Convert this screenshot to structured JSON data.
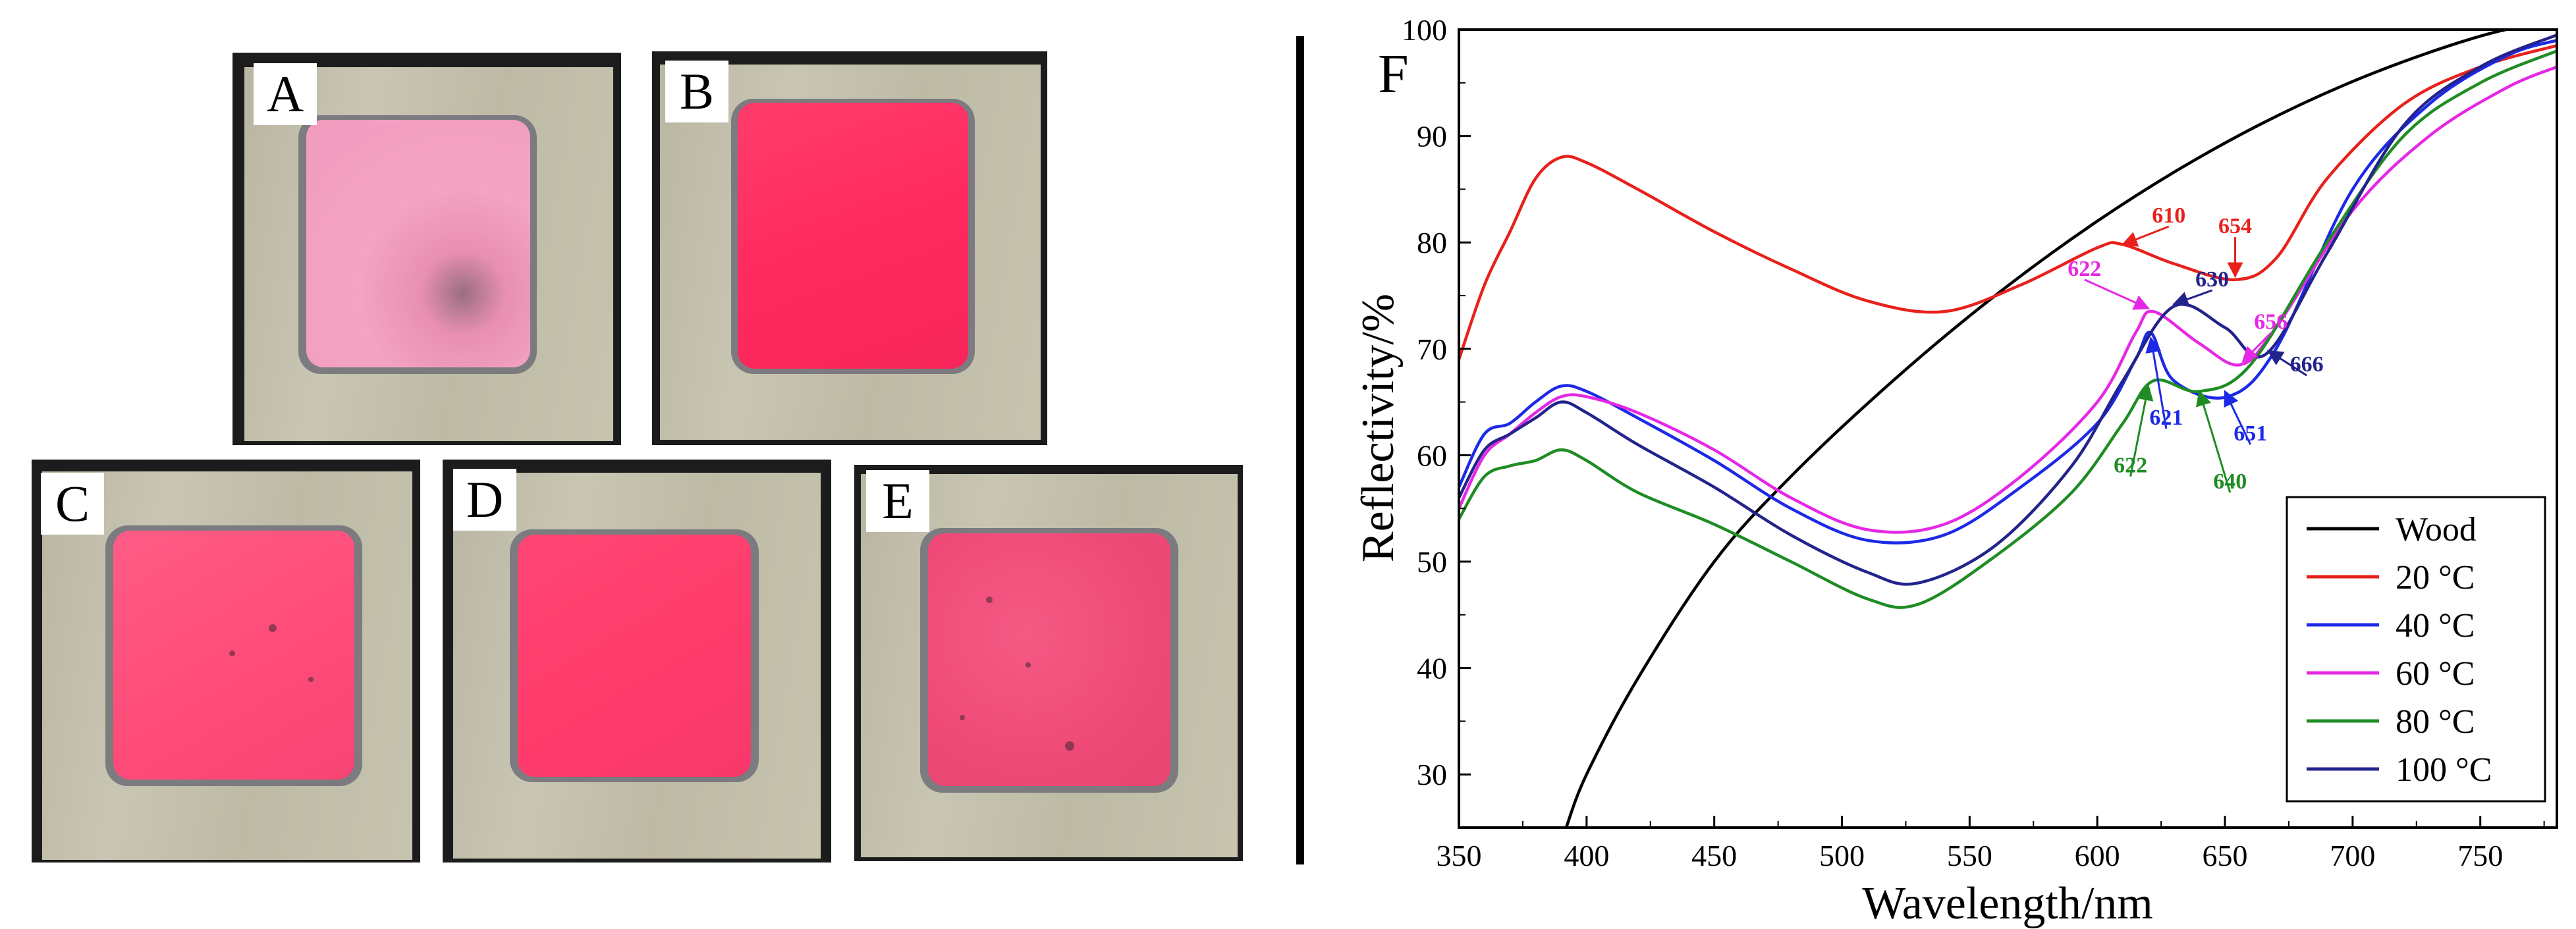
{
  "panels": {
    "A": {
      "label": "A",
      "color": "#f08fb4"
    },
    "B": {
      "label": "B",
      "color": "#ff2d62"
    },
    "C": {
      "label": "C",
      "color": "#ff4f7c"
    },
    "D": {
      "label": "D",
      "color": "#ff3e6e"
    },
    "E": {
      "label": "E",
      "color": "#f24b78"
    }
  },
  "chart_data": {
    "type": "line",
    "panel_label": "F",
    "title": "",
    "xlabel": "Wavelength/nm",
    "ylabel": "Reflectivity/%",
    "xlim": [
      350,
      780
    ],
    "ylim": [
      25,
      100
    ],
    "xticks": [
      350,
      400,
      450,
      500,
      550,
      600,
      650,
      700,
      750
    ],
    "yticks": [
      30,
      40,
      50,
      60,
      70,
      80,
      90,
      100
    ],
    "legend_position": "bottom-right",
    "series": [
      {
        "name": "Wood",
        "color": "#000000",
        "x": [
          392,
          400,
          420,
          450,
          480,
          520,
          560,
          600,
          640,
          680,
          720,
          760,
          780
        ],
        "y": [
          25,
          30,
          39,
          50,
          58,
          67,
          75,
          82,
          88,
          93,
          97,
          100,
          100
        ]
      },
      {
        "name": "20 °C",
        "color": "#e8211c",
        "x": [
          350,
          360,
          370,
          380,
          390,
          400,
          420,
          450,
          480,
          510,
          540,
          570,
          600,
          610,
          630,
          654,
          670,
          690,
          720,
          750,
          780
        ],
        "y": [
          69,
          76,
          81,
          86,
          88,
          87.5,
          85,
          81,
          77.5,
          74.5,
          73.5,
          76,
          79.5,
          79.8,
          78,
          76.5,
          78.5,
          86,
          93,
          96.5,
          98.5
        ]
      },
      {
        "name": "40 °C",
        "color": "#1c29e6",
        "x": [
          350,
          360,
          370,
          380,
          390,
          400,
          420,
          450,
          480,
          510,
          540,
          570,
          600,
          615,
          621,
          630,
          651,
          670,
          700,
          730,
          760,
          780
        ],
        "y": [
          57,
          62,
          63,
          65,
          66.5,
          66,
          63.5,
          59.5,
          55,
          52,
          52.5,
          57,
          63,
          69,
          71.5,
          67,
          65.5,
          70,
          85,
          93,
          97.5,
          99
        ]
      },
      {
        "name": "60 °C",
        "color": "#e528e5",
        "x": [
          350,
          360,
          370,
          380,
          390,
          400,
          420,
          450,
          480,
          510,
          540,
          570,
          600,
          615,
          622,
          640,
          656,
          670,
          700,
          730,
          760,
          780
        ],
        "y": [
          55,
          60,
          62,
          64,
          65.5,
          65.5,
          64,
          60.5,
          56,
          53,
          53.5,
          58,
          65,
          71.5,
          73.5,
          70.5,
          68.5,
          72,
          83,
          90,
          94.5,
          96.5
        ]
      },
      {
        "name": "80 °C",
        "color": "#1f8c24",
        "x": [
          350,
          360,
          370,
          380,
          390,
          400,
          420,
          450,
          480,
          510,
          530,
          560,
          590,
          610,
          622,
          640,
          660,
          690,
          720,
          750,
          780
        ],
        "y": [
          54,
          58,
          59,
          59.5,
          60.5,
          59.5,
          56.5,
          53.5,
          50,
          46.5,
          46,
          50.5,
          56.5,
          63,
          67,
          66,
          68.5,
          80,
          90,
          95,
          98
        ]
      },
      {
        "name": "100 °C",
        "color": "#23238c",
        "x": [
          350,
          360,
          370,
          380,
          390,
          400,
          420,
          450,
          480,
          510,
          530,
          560,
          590,
          610,
          630,
          650,
          666,
          690,
          720,
          750,
          780
        ],
        "y": [
          56,
          60.5,
          62,
          63.5,
          65,
          64,
          61,
          57,
          52.5,
          49,
          48,
          51.5,
          59,
          67,
          74,
          72,
          69.5,
          79,
          91,
          96.5,
          99.5
        ]
      }
    ],
    "annotations": [
      {
        "text": "610",
        "color": "#e8211c",
        "x": 610,
        "y": 79.8,
        "tx": 628,
        "ty": 81.5
      },
      {
        "text": "654",
        "color": "#e8211c",
        "x": 654,
        "y": 76.8,
        "tx": 654,
        "ty": 80.5
      },
      {
        "text": "622",
        "color": "#e528e5",
        "x": 620,
        "y": 73.8,
        "tx": 595,
        "ty": 76.5
      },
      {
        "text": "630",
        "color": "#23238c",
        "x": 630,
        "y": 74.2,
        "tx": 645,
        "ty": 75.5
      },
      {
        "text": "656",
        "color": "#e528e5",
        "x": 657,
        "y": 68.8,
        "tx": 668,
        "ty": 71.5
      },
      {
        "text": "666",
        "color": "#23238c",
        "x": 667,
        "y": 69.8,
        "tx": 682,
        "ty": 67.5
      },
      {
        "text": "621",
        "color": "#1c29e6",
        "x": 621,
        "y": 71,
        "tx": 627,
        "ty": 62.5
      },
      {
        "text": "651",
        "color": "#1c29e6",
        "x": 650,
        "y": 66,
        "tx": 660,
        "ty": 61
      },
      {
        "text": "622",
        "color": "#1f8c24",
        "x": 620,
        "y": 66.5,
        "tx": 613,
        "ty": 58
      },
      {
        "text": "640",
        "color": "#1f8c24",
        "x": 640,
        "y": 66,
        "tx": 652,
        "ty": 56.5
      }
    ]
  }
}
